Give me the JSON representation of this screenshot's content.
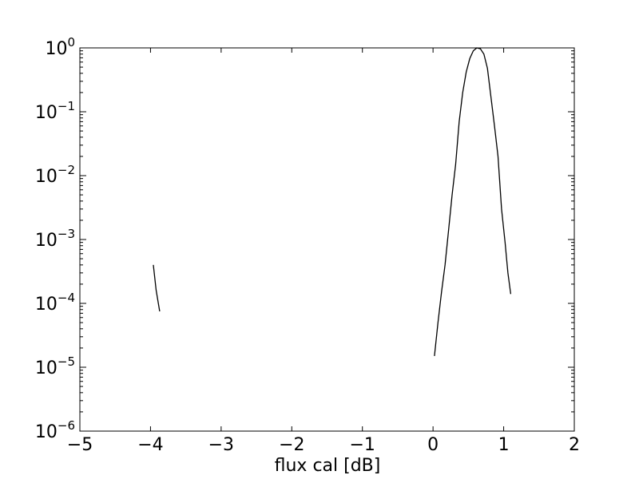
{
  "chart_data": {
    "type": "line",
    "title": "",
    "xlabel": "flux cal [dB]",
    "ylabel": "",
    "xlim": [
      -5,
      2
    ],
    "ylim": [
      1e-06,
      1
    ],
    "yscale": "log",
    "grid": false,
    "x_ticks": [
      -5,
      -4,
      -3,
      -2,
      -1,
      0,
      1,
      2
    ],
    "x_tick_labels": [
      "−5",
      "−4",
      "−3",
      "−2",
      "−1",
      "0",
      "1",
      "2"
    ],
    "y_ticks": [
      {
        "base": "10",
        "exp": "-6",
        "value": 1e-06
      },
      {
        "base": "10",
        "exp": "-5",
        "value": 1e-05
      },
      {
        "base": "10",
        "exp": "-4",
        "value": 0.0001
      },
      {
        "base": "10",
        "exp": "-3",
        "value": 0.001
      },
      {
        "base": "10",
        "exp": "-2",
        "value": 0.01
      },
      {
        "base": "10",
        "exp": "-1",
        "value": 0.1
      },
      {
        "base": "10",
        "exp": "0",
        "value": 1
      }
    ],
    "series": [
      {
        "color": "#000000",
        "segments": [
          [
            {
              "x": -3.96,
              "y": 0.0004
            },
            {
              "x": -3.92,
              "y": 0.00016
            },
            {
              "x": -3.87,
              "y": 7.5e-05
            }
          ],
          [
            {
              "x": 0.02,
              "y": 1.5e-05
            },
            {
              "x": 0.07,
              "y": 5e-05
            },
            {
              "x": 0.12,
              "y": 0.00015
            },
            {
              "x": 0.17,
              "y": 0.0004
            },
            {
              "x": 0.22,
              "y": 0.0014
            },
            {
              "x": 0.27,
              "y": 0.005
            },
            {
              "x": 0.32,
              "y": 0.015
            },
            {
              "x": 0.37,
              "y": 0.07
            },
            {
              "x": 0.42,
              "y": 0.2
            },
            {
              "x": 0.47,
              "y": 0.42
            },
            {
              "x": 0.52,
              "y": 0.68
            },
            {
              "x": 0.57,
              "y": 0.9
            },
            {
              "x": 0.62,
              "y": 1.0
            },
            {
              "x": 0.67,
              "y": 0.97
            },
            {
              "x": 0.72,
              "y": 0.8
            },
            {
              "x": 0.77,
              "y": 0.48
            },
            {
              "x": 0.82,
              "y": 0.17
            },
            {
              "x": 0.87,
              "y": 0.06
            },
            {
              "x": 0.92,
              "y": 0.02
            },
            {
              "x": 0.97,
              "y": 0.003
            },
            {
              "x": 1.02,
              "y": 0.0009
            },
            {
              "x": 1.06,
              "y": 0.0003
            },
            {
              "x": 1.1,
              "y": 0.00014
            }
          ]
        ]
      }
    ]
  }
}
